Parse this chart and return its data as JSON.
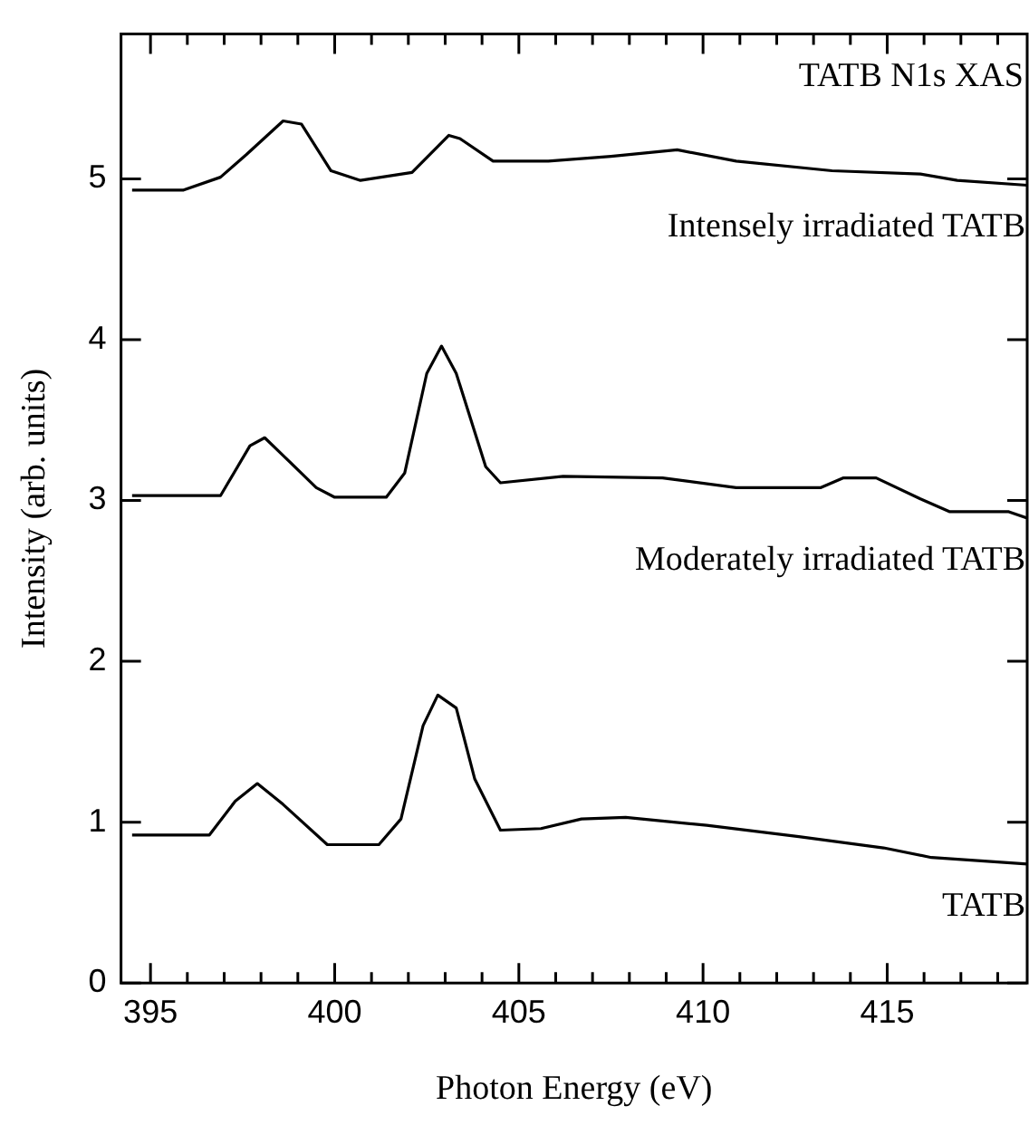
{
  "chart_data": {
    "type": "line",
    "title": "TATB N1s XAS",
    "xlabel": "Photon Energy (eV)",
    "ylabel": "Intensity (arb. units)",
    "xlim": [
      394.2,
      418.8
    ],
    "ylim": [
      0,
      5.9
    ],
    "xticks": [
      395,
      {
        "value": 396,
        "label": null
      },
      {
        "value": 397,
        "label": null
      },
      {
        "value": 398,
        "label": null
      },
      {
        "value": 399,
        "label": null
      },
      400,
      {
        "value": 401,
        "label": null
      },
      {
        "value": 402,
        "label": null
      },
      {
        "value": 403,
        "label": null
      },
      {
        "value": 404,
        "label": null
      },
      405,
      {
        "value": 406,
        "label": null
      },
      {
        "value": 407,
        "label": null
      },
      {
        "value": 408,
        "label": null
      },
      {
        "value": 409,
        "label": null
      },
      410,
      {
        "value": 411,
        "label": null
      },
      {
        "value": 412,
        "label": null
      },
      {
        "value": 413,
        "label": null
      },
      {
        "value": 414,
        "label": null
      },
      415,
      {
        "value": 416,
        "label": null
      },
      {
        "value": 417,
        "label": null
      },
      {
        "value": 418,
        "label": null
      }
    ],
    "yticks": [
      0,
      1,
      2,
      3,
      4,
      5
    ],
    "grid": false,
    "legend": "right",
    "marker": "none",
    "line_style": "solid",
    "series": [
      {
        "name": "Intensely irradiated TATB",
        "color": "#000000",
        "x": [
          394.5,
          395.9,
          396.9,
          397.6,
          398.6,
          399.1,
          399.9,
          400.7,
          402.1,
          403.1,
          403.4,
          404.3,
          405.8,
          407.5,
          409.3,
          410.9,
          413.5,
          415.9,
          416.9,
          418.8
        ],
        "values": [
          4.93,
          4.93,
          5.01,
          5.15,
          5.36,
          5.34,
          5.05,
          4.99,
          5.04,
          5.27,
          5.25,
          5.11,
          5.11,
          5.14,
          5.18,
          5.11,
          5.05,
          5.03,
          4.99,
          4.96
        ]
      },
      {
        "name": "Moderately irradiated TATB",
        "color": "#000000",
        "x": [
          394.5,
          396.9,
          397.7,
          398.1,
          398.6,
          399.5,
          400.0,
          401.4,
          401.9,
          402.5,
          402.9,
          403.3,
          404.1,
          404.5,
          406.2,
          408.9,
          410.9,
          413.2,
          413.8,
          414.7,
          415.9,
          416.7,
          418.3,
          418.8
        ],
        "values": [
          3.03,
          3.03,
          3.34,
          3.39,
          3.28,
          3.08,
          3.02,
          3.02,
          3.17,
          3.79,
          3.96,
          3.79,
          3.21,
          3.11,
          3.15,
          3.14,
          3.08,
          3.08,
          3.14,
          3.14,
          3.01,
          2.93,
          2.93,
          2.89
        ]
      },
      {
        "name": "TATB",
        "color": "#000000",
        "x": [
          394.5,
          396.6,
          397.3,
          397.9,
          398.6,
          399.8,
          401.2,
          401.8,
          402.4,
          402.8,
          403.3,
          403.8,
          404.5,
          405.6,
          406.7,
          407.9,
          410.1,
          412.6,
          414.9,
          416.2,
          418.8
        ],
        "values": [
          0.92,
          0.92,
          1.13,
          1.24,
          1.11,
          0.86,
          0.86,
          1.02,
          1.6,
          1.79,
          1.71,
          1.27,
          0.95,
          0.96,
          1.02,
          1.03,
          0.98,
          0.91,
          0.84,
          0.78,
          0.74
        ]
      }
    ]
  }
}
